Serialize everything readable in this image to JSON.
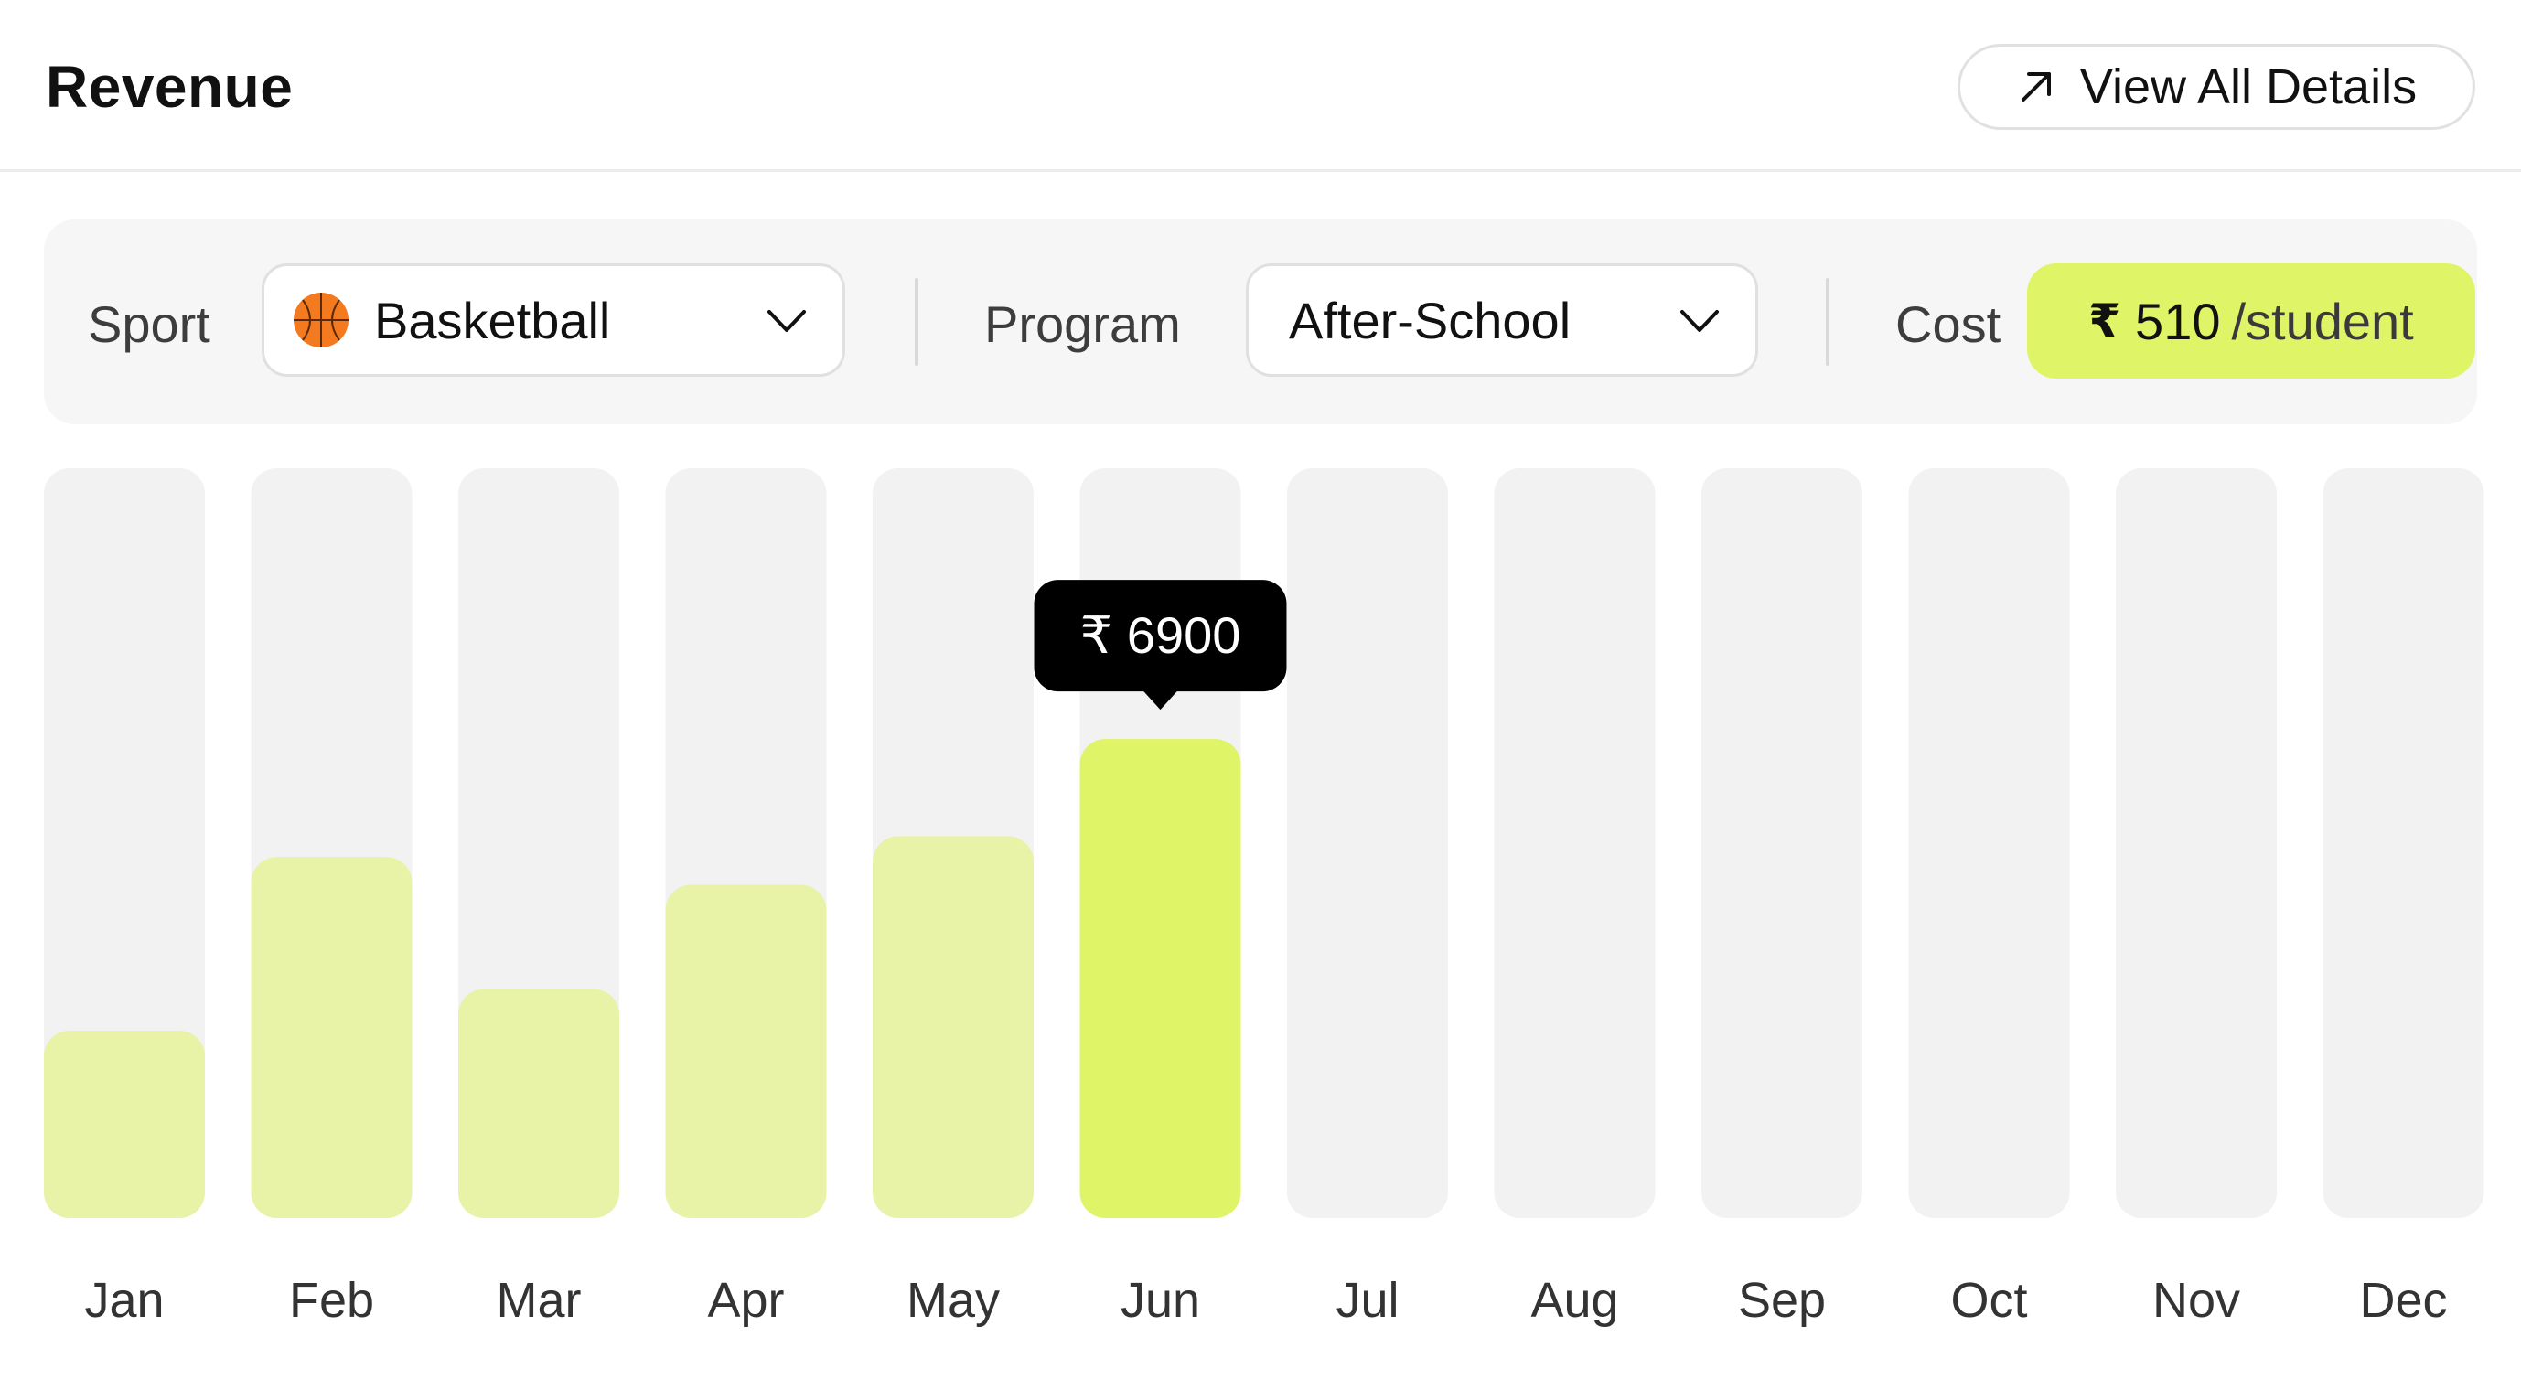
{
  "header": {
    "title": "Revenue",
    "view_all_label": "View All Details",
    "view_all_icon": "arrow-up-right-icon"
  },
  "filters": {
    "sport_label": "Sport",
    "sport_value": "Basketball",
    "sport_icon": "basketball-icon",
    "program_label": "Program",
    "program_value": "After-School",
    "cost_label": "Cost",
    "cost_currency": "₹",
    "cost_value": "510",
    "cost_unit": "/student"
  },
  "colors": {
    "accent": "#e0f467",
    "bar_past": "#e8f3a8",
    "track": "#f2f2f2",
    "tooltip_bg": "#000000",
    "tooltip_text": "#ffffff"
  },
  "chart_data": {
    "type": "bar",
    "categories": [
      "Jan",
      "Feb",
      "Mar",
      "Apr",
      "May",
      "Jun",
      "Jul",
      "Aug",
      "Sep",
      "Oct",
      "Nov",
      "Dec"
    ],
    "values": [
      2700,
      5200,
      3300,
      4800,
      5500,
      6900,
      null,
      null,
      null,
      null,
      null,
      null
    ],
    "ylim": [
      0,
      10800
    ],
    "highlight_index": 5,
    "tooltip": {
      "currency": "₹",
      "value": "6900"
    },
    "grid": false,
    "legend": "none",
    "title": "",
    "xlabel": "",
    "ylabel": ""
  }
}
